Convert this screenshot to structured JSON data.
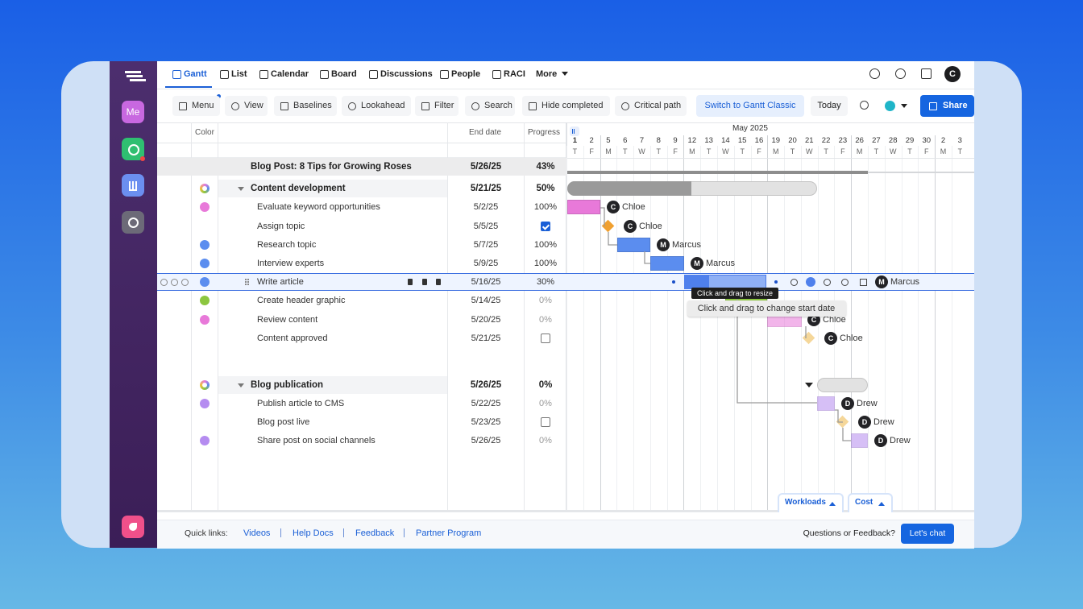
{
  "nav": {
    "tabs": [
      "Gantt",
      "List",
      "Calendar",
      "Board",
      "Discussions",
      "People",
      "RACI",
      "More"
    ],
    "avatar": "C"
  },
  "sidebar": {
    "me": "Me"
  },
  "toolbar": {
    "items": [
      "Menu",
      "View",
      "Baselines",
      "Lookahead",
      "Filter",
      "Search",
      "Hide completed",
      "Critical path"
    ],
    "classic": "Switch to Gantt Classic",
    "today": "Today",
    "share": "Share"
  },
  "grid": {
    "columns": [
      "Color",
      "End date",
      "Progress"
    ],
    "rows": [
      {
        "name": "Blog Post: 8 Tips for Growing Roses",
        "end": "5/26/25",
        "progress": "43%"
      },
      {
        "name": "Content development",
        "end": "5/21/25",
        "progress": "50%"
      },
      {
        "name": "Evaluate keyword opportunities",
        "end": "5/2/25",
        "progress": "100%",
        "color": "#e879d9",
        "assignee": "Chloe",
        "initial": "C"
      },
      {
        "name": "Assign topic",
        "end": "5/5/25",
        "done": true,
        "assignee": "Chloe",
        "initial": "C"
      },
      {
        "name": "Research topic",
        "end": "5/7/25",
        "progress": "100%",
        "color": "#5b8def",
        "assignee": "Marcus",
        "initial": "M"
      },
      {
        "name": "Interview experts",
        "end": "5/9/25",
        "progress": "100%",
        "color": "#5b8def",
        "assignee": "Marcus",
        "initial": "M"
      },
      {
        "name": "Write article",
        "end": "5/16/25",
        "progress": "30%",
        "color": "#5b8def",
        "assignee": "Marcus",
        "initial": "M"
      },
      {
        "name": "Create header graphic",
        "end": "5/14/25",
        "progress": "0%",
        "color": "#8cc63f"
      },
      {
        "name": "Review content",
        "end": "5/20/25",
        "progress": "0%",
        "color": "#e879d9",
        "assignee": "Chloe",
        "initial": "C"
      },
      {
        "name": "Content approved",
        "end": "5/21/25",
        "done": false,
        "assignee": "Chloe",
        "initial": "C"
      },
      {
        "name": "Blog publication",
        "end": "5/26/25",
        "progress": "0%"
      },
      {
        "name": "Publish article to CMS",
        "end": "5/22/25",
        "progress": "0%",
        "color": "#b58cf0",
        "assignee": "Drew",
        "initial": "D"
      },
      {
        "name": "Blog post live",
        "end": "5/23/25",
        "done": false,
        "assignee": "Drew",
        "initial": "D"
      },
      {
        "name": "Share post on social channels",
        "end": "5/26/25",
        "progress": "0%",
        "color": "#b58cf0",
        "assignee": "Drew",
        "initial": "D"
      }
    ]
  },
  "timeline": {
    "month": "May 2025",
    "days": [
      1,
      2,
      5,
      6,
      7,
      8,
      9,
      12,
      13,
      14,
      15,
      16,
      19,
      20,
      21,
      22,
      23,
      26,
      27,
      28,
      29,
      30,
      2,
      3
    ],
    "weekdays": [
      "T",
      "F",
      "M",
      "T",
      "W",
      "T",
      "F",
      "M",
      "T",
      "W",
      "T",
      "F",
      "M",
      "T",
      "W",
      "T",
      "F",
      "M",
      "T",
      "W",
      "T",
      "F",
      "M",
      "T"
    ]
  },
  "tooltips": [
    "Click and drag to resize",
    "Click and drag to change start date"
  ],
  "panels": [
    "Workloads",
    "Cost"
  ],
  "footer": {
    "label": "Quick links:",
    "links": [
      "Videos",
      "Help Docs",
      "Feedback",
      "Partner Program"
    ],
    "question": "Questions or Feedback?",
    "chat": "Let's chat"
  }
}
